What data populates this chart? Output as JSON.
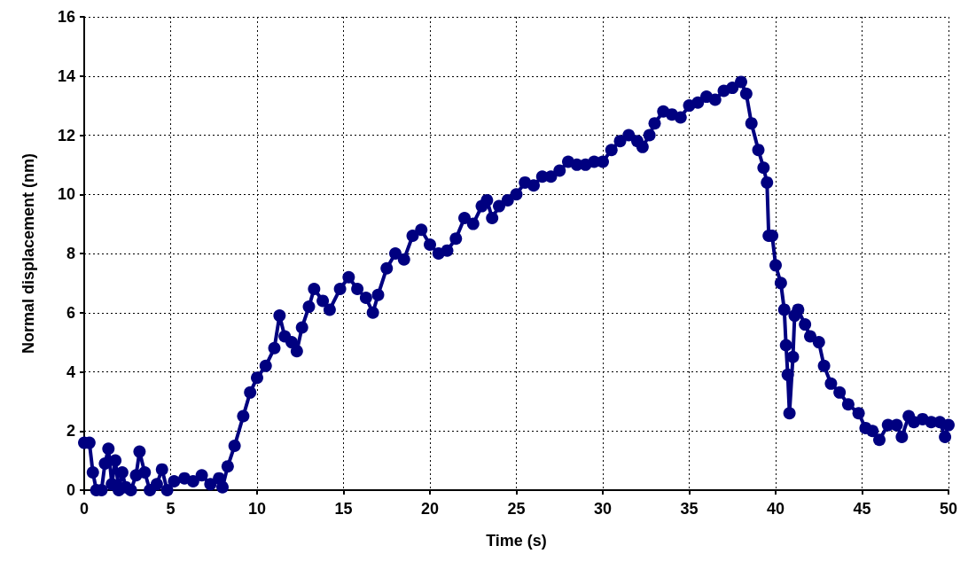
{
  "chart_data": {
    "type": "line",
    "xlabel": "Time (s)",
    "ylabel": "Normal displacement (nm)",
    "xlim": [
      0,
      50
    ],
    "xticks": [
      0,
      5,
      10,
      15,
      20,
      25,
      30,
      35,
      40,
      45,
      50
    ],
    "ylim": [
      0,
      16
    ],
    "yticks": [
      0,
      2,
      4,
      6,
      8,
      10,
      12,
      14,
      16
    ],
    "grid": true,
    "marker": "circle",
    "line_style": "solid",
    "series": [
      {
        "color": "#000080",
        "x": [
          0,
          0.3,
          0.5,
          0.7,
          1.0,
          1.2,
          1.4,
          1.6,
          1.8,
          2.0,
          2.2,
          2.4,
          2.7,
          3.0,
          3.2,
          3.5,
          3.8,
          4.2,
          4.5,
          4.8,
          5.2,
          5.8,
          6.3,
          6.8,
          7.3,
          7.8,
          8.0,
          8.3,
          8.7,
          9.2,
          9.6,
          10.0,
          10.5,
          11.0,
          11.3,
          11.6,
          12.0,
          12.3,
          12.6,
          13.0,
          13.3,
          13.8,
          14.2,
          14.8,
          15.3,
          15.8,
          16.3,
          16.7,
          17.0,
          17.5,
          18.0,
          18.5,
          19.0,
          19.5,
          20.0,
          20.5,
          21.0,
          21.5,
          22.0,
          22.5,
          23.0,
          23.3,
          23.6,
          24.0,
          24.5,
          25.0,
          25.5,
          26.0,
          26.5,
          27.0,
          27.5,
          28.0,
          28.5,
          29.0,
          29.5,
          30.0,
          30.5,
          31.0,
          31.5,
          32.0,
          32.3,
          32.7,
          33.0,
          33.5,
          34.0,
          34.5,
          35.0,
          35.5,
          36.0,
          36.5,
          37.0,
          37.5,
          38.0,
          38.3,
          38.6,
          39.0,
          39.3,
          39.5,
          39.6,
          39.8,
          40.0,
          40.3,
          40.5,
          40.6,
          40.7,
          40.8,
          41.0,
          41.1,
          41.3,
          41.7,
          42.0,
          42.5,
          42.8,
          43.2,
          43.7,
          44.2,
          44.8,
          45.2,
          45.6,
          46.0,
          46.5,
          47.0,
          47.3,
          47.7,
          48.0,
          48.5,
          49.0,
          49.5,
          49.8,
          50.0
        ],
        "values": [
          1.6,
          1.6,
          0.6,
          0,
          0,
          0.9,
          1.4,
          0.2,
          1.0,
          0,
          0.6,
          0.1,
          0,
          0.5,
          1.3,
          0.6,
          0,
          0.2,
          0.7,
          0,
          0.3,
          0.4,
          0.3,
          0.5,
          0.2,
          0.4,
          0.1,
          0.8,
          1.5,
          2.5,
          3.3,
          3.8,
          4.2,
          4.8,
          5.9,
          5.2,
          5.0,
          4.7,
          5.5,
          6.2,
          6.8,
          6.4,
          6.1,
          6.8,
          7.2,
          6.8,
          6.5,
          6.0,
          6.6,
          7.5,
          8.0,
          7.8,
          8.6,
          8.8,
          8.3,
          8.0,
          8.1,
          8.5,
          9.2,
          9.0,
          9.6,
          9.8,
          9.2,
          9.6,
          9.8,
          10.0,
          10.4,
          10.3,
          10.6,
          10.6,
          10.8,
          11.1,
          11.0,
          11.0,
          11.1,
          11.1,
          11.5,
          11.8,
          12.0,
          11.8,
          11.6,
          12.0,
          12.4,
          12.8,
          12.7,
          12.6,
          13.0,
          13.1,
          13.3,
          13.2,
          13.5,
          13.6,
          13.8,
          13.4,
          12.4,
          11.5,
          10.9,
          10.4,
          8.6,
          8.6,
          7.6,
          7.0,
          6.1,
          4.9,
          3.9,
          2.6,
          4.5,
          5.9,
          6.1,
          5.6,
          5.2,
          5.0,
          4.2,
          3.6,
          3.3,
          2.9,
          2.6,
          2.1,
          2.0,
          1.7,
          2.2,
          2.2,
          1.8,
          2.5,
          2.3,
          2.4,
          2.3,
          2.3,
          1.8,
          2.2
        ]
      }
    ]
  }
}
